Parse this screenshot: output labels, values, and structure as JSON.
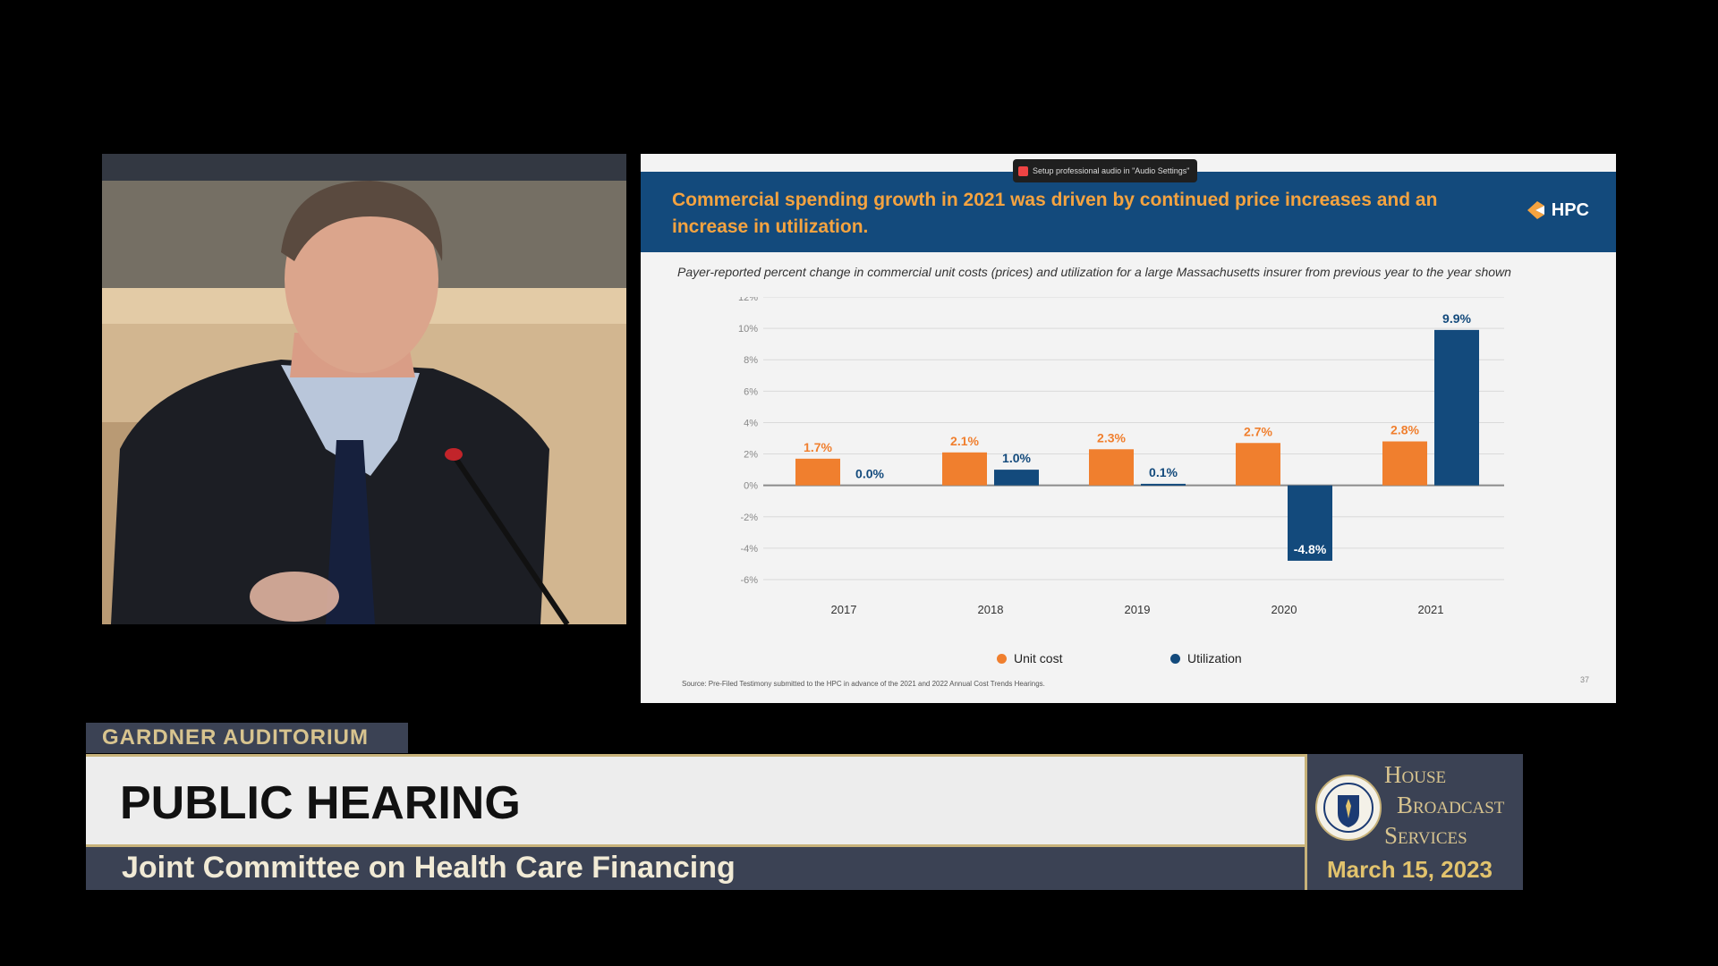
{
  "slide": {
    "title": "Commercial spending growth in 2021 was driven by continued price increases and an increase in utilization.",
    "logo_text": "HPC",
    "zoom_toast": "Setup professional audio in \"Audio Settings\"",
    "subtitle": "Payer-reported percent change in commercial unit costs (prices) and utilization for a large Massachusetts insurer from previous year to the year shown",
    "source": "Source: Pre-Filed Testimony submitted to the HPC in advance of the 2021 and 2022 Annual Cost Trends Hearings.",
    "page_number": "37"
  },
  "chart_data": {
    "type": "bar",
    "categories": [
      "2017",
      "2018",
      "2019",
      "2020",
      "2021"
    ],
    "series": [
      {
        "name": "Unit cost",
        "values": [
          1.7,
          2.1,
          2.3,
          2.7,
          2.8
        ],
        "labels": [
          "1.7%",
          "2.1%",
          "2.3%",
          "2.7%",
          "2.8%"
        ],
        "color": "#f07f2e"
      },
      {
        "name": "Utilization",
        "values": [
          0.0,
          1.0,
          0.1,
          -4.8,
          9.9
        ],
        "labels": [
          "0.0%",
          "1.0%",
          "0.1%",
          "-4.8%",
          "9.9%"
        ],
        "color": "#134a7c"
      }
    ],
    "yticks": [
      "12%",
      "10%",
      "8%",
      "6%",
      "4%",
      "2%",
      "0%",
      "-2%",
      "-4%",
      "-6%"
    ],
    "ylim": [
      -6,
      12
    ],
    "grid": true,
    "legend_position": "bottom-center"
  },
  "broadcast": {
    "location": "GARDNER AUDITORIUM",
    "event_title": "PUBLIC HEARING",
    "committee": "Joint Committee on Health Care Financing",
    "network_line1": "House",
    "network_line2": "Broadcast",
    "network_line3": "Services",
    "date": "March 15, 2023"
  },
  "colors": {
    "banner": "#134a7c",
    "title_orange": "#f4a340",
    "lower_third_slate": "#3b4254",
    "gold": "#d8c48f"
  }
}
